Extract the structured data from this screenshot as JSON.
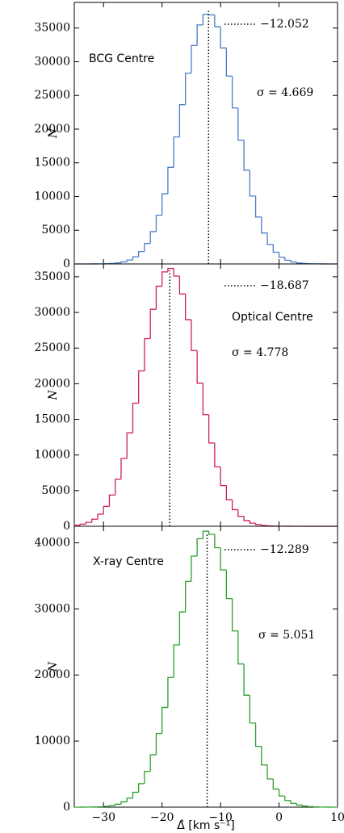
{
  "chart_data": [
    {
      "type": "histogram",
      "color": "#4a7cc9",
      "ylabel": "N",
      "panel_label": "BCG Centre",
      "sigma_label": "σ = 4.669",
      "mean": {
        "value": -12.052,
        "label": "−12.052"
      },
      "ylim": [
        0,
        38800
      ],
      "yticks": [
        0,
        5000,
        10000,
        15000,
        20000,
        25000,
        30000,
        35000
      ],
      "bins": [
        -35,
        -34,
        -33,
        -32,
        -31,
        -30,
        -29,
        -28,
        -27,
        -26,
        -25,
        -24,
        -23,
        -22,
        -21,
        -20,
        -19,
        -18,
        -17,
        -16,
        -15,
        -14,
        -13,
        -12,
        -11,
        -10,
        -9,
        -8,
        -7,
        -6,
        -5,
        -4,
        -3,
        -2,
        -1,
        0,
        1,
        2,
        3,
        4,
        5,
        6,
        7,
        8,
        9,
        10
      ],
      "values": [
        0,
        0,
        3,
        6,
        15,
        35,
        75,
        157,
        309,
        587,
        1063,
        1839,
        3038,
        4800,
        7230,
        10410,
        14330,
        18830,
        23630,
        28310,
        32410,
        35460,
        37030,
        36950,
        35200,
        32040,
        27870,
        23140,
        18370,
        13910,
        10070,
        6960,
        4590,
        2890,
        1740,
        1006,
        551,
        289,
        145,
        70,
        32,
        14,
        6,
        2,
        0
      ]
    },
    {
      "type": "histogram",
      "color": "#d0204f",
      "ylabel": "N",
      "panel_label": "Optical Centre",
      "sigma_label": "σ = 4.778",
      "mean": {
        "value": -18.687,
        "label": "−18.687"
      },
      "ylim": [
        0,
        36800
      ],
      "yticks": [
        0,
        5000,
        10000,
        15000,
        20000,
        25000,
        30000,
        35000
      ],
      "bins": [
        -35,
        -34,
        -33,
        -32,
        -31,
        -30,
        -29,
        -28,
        -27,
        -26,
        -25,
        -24,
        -23,
        -22,
        -21,
        -20,
        -19,
        -18,
        -17,
        -16,
        -15,
        -14,
        -13,
        -12,
        -11,
        -10,
        -9,
        -8,
        -7,
        -6,
        -5,
        -4,
        -3,
        -2,
        -1,
        0,
        1,
        2,
        3,
        4,
        5,
        6,
        7,
        8,
        9,
        10
      ],
      "values": [
        152,
        296,
        555,
        990,
        1700,
        2790,
        4390,
        6610,
        9510,
        13100,
        17270,
        21800,
        26330,
        30440,
        33680,
        35680,
        36170,
        35100,
        32600,
        28980,
        24660,
        20080,
        15650,
        11680,
        8340,
        5700,
        3730,
        2330,
        1400,
        800,
        440,
        232,
        116,
        56,
        26,
        11,
        5,
        2,
        0,
        0,
        0,
        0,
        0,
        0,
        0
      ]
    },
    {
      "type": "histogram",
      "color": "#2ca02c",
      "ylabel": "N",
      "panel_label": "X-ray Centre",
      "sigma_label": "σ = 5.051",
      "mean": {
        "value": -12.289,
        "label": "−12.289"
      },
      "ylim": [
        0,
        42500
      ],
      "yticks": [
        0,
        10000,
        20000,
        30000,
        40000
      ],
      "xlim": [
        -35,
        10
      ],
      "xticks": [
        {
          "value": -30,
          "label": "−30"
        },
        {
          "value": -20,
          "label": "−20"
        },
        {
          "value": -10,
          "label": "−10"
        },
        0,
        10
      ],
      "xlabel": "Δ̂ [km s⁻¹]",
      "bins": [
        -35,
        -34,
        -33,
        -32,
        -31,
        -30,
        -29,
        -28,
        -27,
        -26,
        -25,
        -24,
        -23,
        -22,
        -21,
        -20,
        -19,
        -18,
        -17,
        -16,
        -15,
        -14,
        -13,
        -12,
        -11,
        -10,
        -9,
        -8,
        -7,
        -6,
        -5,
        -4,
        -3,
        -2,
        -1,
        0,
        1,
        2,
        3,
        4,
        5,
        6,
        7,
        8,
        9,
        10
      ],
      "values": [
        3,
        6,
        14,
        30,
        63,
        126,
        243,
        449,
        800,
        1370,
        2250,
        3560,
        5420,
        7930,
        11150,
        15090,
        19630,
        24550,
        29530,
        34150,
        37980,
        40620,
        41760,
        41290,
        39260,
        35890,
        31550,
        26670,
        21670,
        16940,
        12730,
        9200,
        6390,
        4270,
        2740,
        1690,
        1010,
        576,
        316,
        167,
        85,
        41,
        19,
        9,
        4
      ]
    }
  ]
}
